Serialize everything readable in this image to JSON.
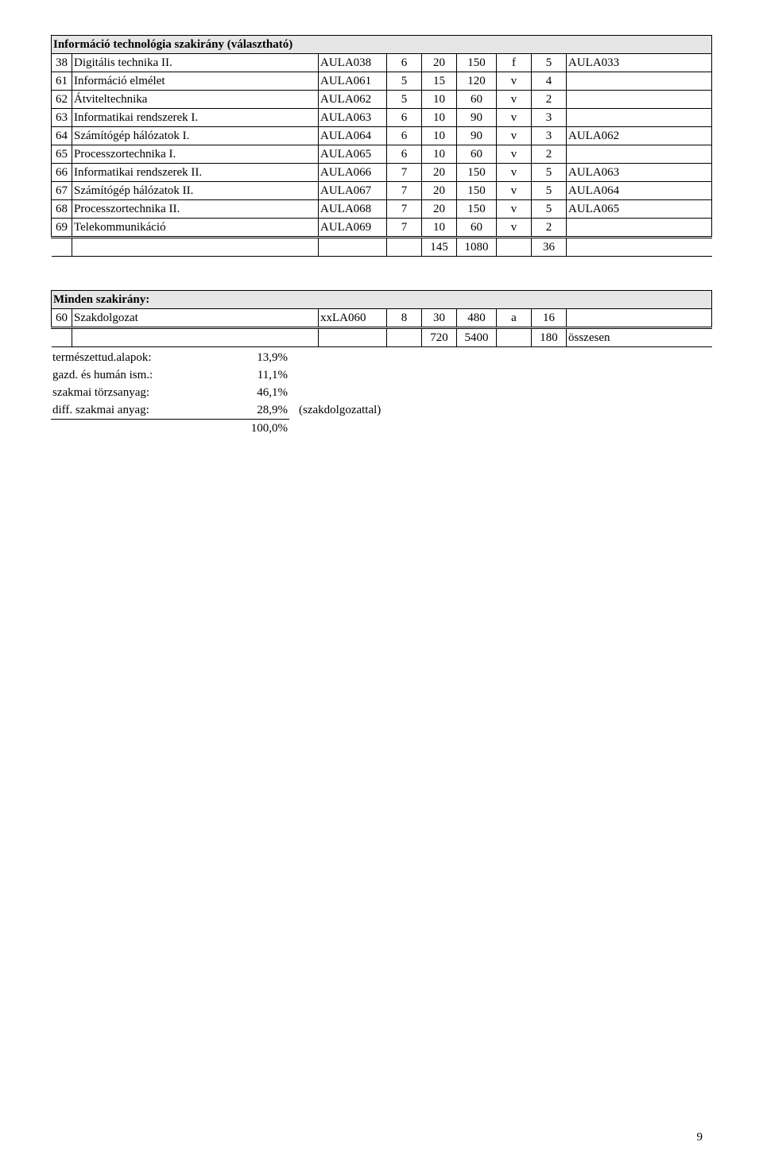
{
  "section1": {
    "title": "Információ technológia szakirány (választható)",
    "rows": [
      {
        "n": "38",
        "name": "Digitális technika II.",
        "gap": "",
        "code": "AULA038",
        "a": "6",
        "b": "20",
        "c": "150",
        "d": "f",
        "e": "5",
        "f": "AULA033"
      },
      {
        "n": "61",
        "name": "Információ elmélet",
        "gap": "",
        "code": "AULA061",
        "a": "5",
        "b": "15",
        "c": "120",
        "d": "v",
        "e": "4",
        "f": ""
      },
      {
        "n": "62",
        "name": "Átviteltechnika",
        "gap": "",
        "code": "AULA062",
        "a": "5",
        "b": "10",
        "c": "60",
        "d": "v",
        "e": "2",
        "f": ""
      },
      {
        "n": "63",
        "name": "Informatikai rendszerek I.",
        "gap": "",
        "code": "AULA063",
        "a": "6",
        "b": "10",
        "c": "90",
        "d": "v",
        "e": "3",
        "f": ""
      },
      {
        "n": "64",
        "name": "Számítógép hálózatok I.",
        "gap": "",
        "code": "AULA064",
        "a": "6",
        "b": "10",
        "c": "90",
        "d": "v",
        "e": "3",
        "f": "AULA062"
      },
      {
        "n": "65",
        "name": "Processzortechnika I.",
        "gap": "",
        "code": "AULA065",
        "a": "6",
        "b": "10",
        "c": "60",
        "d": "v",
        "e": "2",
        "f": ""
      },
      {
        "n": "66",
        "name": "Informatikai rendszerek II.",
        "gap": "",
        "code": "AULA066",
        "a": "7",
        "b": "20",
        "c": "150",
        "d": "v",
        "e": "5",
        "f": "AULA063"
      },
      {
        "n": "67",
        "name": "Számítógép hálózatok II.",
        "gap": "",
        "code": "AULA067",
        "a": "7",
        "b": "20",
        "c": "150",
        "d": "v",
        "e": "5",
        "f": "AULA064"
      },
      {
        "n": "68",
        "name": "Processzortechnika II.",
        "gap": "",
        "code": "AULA068",
        "a": "7",
        "b": "20",
        "c": "150",
        "d": "v",
        "e": "5",
        "f": "AULA065"
      },
      {
        "n": "69",
        "name": "Telekommunikáció",
        "gap": "",
        "code": "AULA069",
        "a": "7",
        "b": "10",
        "c": "60",
        "d": "v",
        "e": "2",
        "f": ""
      }
    ],
    "sum": {
      "b": "145",
      "c": "1080",
      "e": "36"
    }
  },
  "section2": {
    "title": "Minden szakirány:",
    "row": {
      "n": "60",
      "name": "Szakdolgozat",
      "gap": "",
      "code": "xxLA060",
      "a": "8",
      "b": "30",
      "c": "480",
      "d": "a",
      "e": "16",
      "f": ""
    },
    "sum": {
      "b": "720",
      "c": "5400",
      "e": "180",
      "f": "összesen"
    }
  },
  "summary": {
    "lines": [
      {
        "label": "természettud.alapok:",
        "val": "13,9%",
        "note": ""
      },
      {
        "label": "gazd. és humán ism.:",
        "val": "11,1%",
        "note": ""
      },
      {
        "label": "szakmai törzsanyag:",
        "val": "46,1%",
        "note": ""
      },
      {
        "label": "diff. szakmai anyag:",
        "val": "28,9%",
        "note": "(szakdolgozattal)"
      }
    ],
    "total": "100,0%"
  },
  "pagenum": "9"
}
